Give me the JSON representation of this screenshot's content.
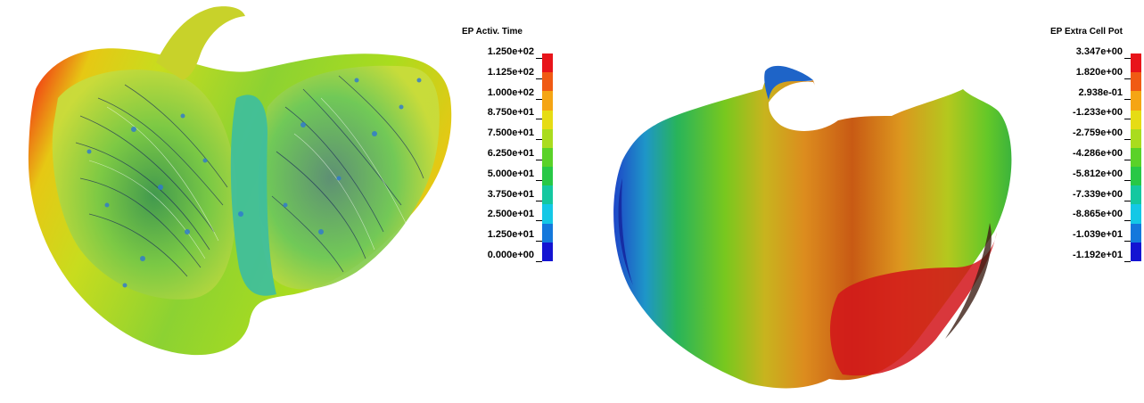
{
  "left_panel": {
    "legend": {
      "title": "EP Activ. Time",
      "ticks": [
        "1.250e+02",
        "1.125e+02",
        "1.000e+02",
        "8.750e+01",
        "7.500e+01",
        "6.250e+01",
        "5.000e+01",
        "3.750e+01",
        "2.500e+01",
        "1.250e+01",
        "0.000e+00"
      ],
      "colors": [
        "#e8141a",
        "#f05a14",
        "#f5a514",
        "#e6dc14",
        "#aadc1e",
        "#5ad228",
        "#28c846",
        "#14c8a0",
        "#14c8e6",
        "#1478dc",
        "#1414d2"
      ]
    }
  },
  "right_panel": {
    "legend": {
      "title": "EP Extra Cell Pot",
      "ticks": [
        "3.347e+00",
        "1.820e+00",
        "2.938e-01",
        "-1.233e+00",
        "-2.759e+00",
        "-4.286e+00",
        "-5.812e+00",
        "-7.339e+00",
        "-8.865e+00",
        "-1.039e+01",
        "-1.192e+01"
      ],
      "colors": [
        "#e8141a",
        "#f05a14",
        "#f5a514",
        "#e6dc14",
        "#aadc1e",
        "#5ad228",
        "#28c846",
        "#14c8a0",
        "#14c8e6",
        "#1478dc",
        "#1414d2"
      ]
    }
  }
}
